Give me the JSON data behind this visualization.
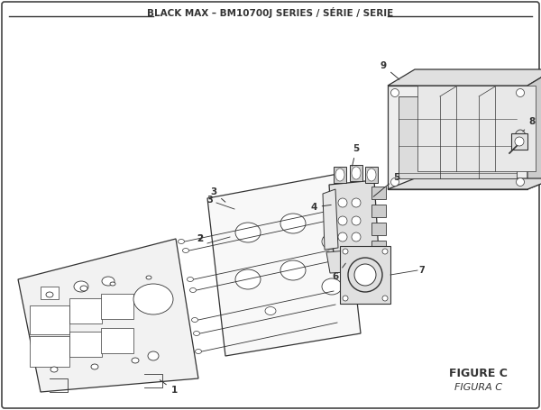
{
  "title": "BLACK MAX – BM10700J SERIES / SÉRIE / SERIE",
  "figure_label": "FIGURE C",
  "figure_label2": "FIGURA C",
  "bg_color": "#ffffff",
  "border_color": "#444444",
  "line_color": "#333333",
  "fill_light": "#f2f2f2",
  "fill_mid": "#e0e0e0",
  "fill_dark": "#cccccc"
}
